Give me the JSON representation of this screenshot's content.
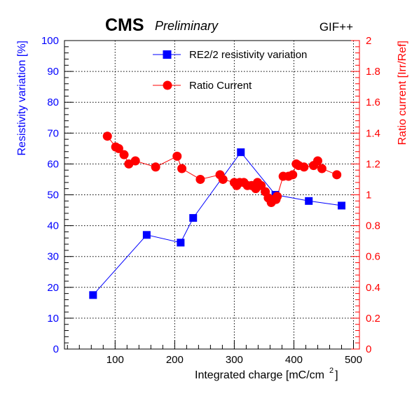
{
  "chart_data": {
    "type": "line",
    "header": {
      "experiment": "CMS",
      "status": "Preliminary",
      "facility": "GIF++"
    },
    "xlabel": "Integrated charge [mC/cm",
    "xlabel_superscript": "2",
    "xlabel_close": "]",
    "ylabel_left": "Resistivity variation [%]",
    "ylabel_right": "Ratio current [Irr/Ref]",
    "xlim": [
      15,
      510
    ],
    "ylim_left": [
      0,
      100
    ],
    "ylim_right": [
      0,
      2
    ],
    "x_ticks": [
      100,
      200,
      300,
      400,
      500
    ],
    "y_left_ticks": [
      0,
      10,
      20,
      30,
      40,
      50,
      60,
      70,
      80,
      90,
      100
    ],
    "y_right_ticks": [
      "0",
      "0.2",
      "0.4",
      "0.6",
      "0.8",
      "1",
      "1.2",
      "1.4",
      "1.6",
      "1.8",
      "2"
    ],
    "grid": true,
    "legend_position": "top-center",
    "colors": {
      "resistivity": "#0000ff",
      "current": "#ff0000",
      "left_axis": "#0000ff",
      "right_axis": "#ff0000",
      "grid": "#000000"
    },
    "series": [
      {
        "name": "RE2/2 resistivity variation",
        "axis": "left",
        "marker": "square",
        "x": [
          63,
          153,
          210,
          231,
          311,
          369,
          425,
          480
        ],
        "y": [
          17.5,
          37,
          34.5,
          42.5,
          63.8,
          50,
          48,
          46.5
        ]
      },
      {
        "name": "Ratio Current",
        "axis": "right",
        "marker": "circle",
        "x": [
          87,
          101,
          106,
          115,
          123,
          134,
          168,
          204,
          212,
          243,
          276,
          281,
          300,
          304,
          309,
          316,
          322,
          329,
          336,
          339,
          345,
          352,
          357,
          362,
          366,
          370,
          372,
          382,
          391,
          398,
          404,
          408,
          417,
          433,
          440,
          447,
          472
        ],
        "y": [
          1.38,
          1.31,
          1.3,
          1.26,
          1.2,
          1.22,
          1.18,
          1.25,
          1.17,
          1.1,
          1.13,
          1.1,
          1.08,
          1.06,
          1.08,
          1.08,
          1.06,
          1.06,
          1.04,
          1.08,
          1.06,
          1.02,
          0.98,
          0.95,
          0.97,
          0.97,
          0.99,
          1.12,
          1.12,
          1.13,
          1.2,
          1.19,
          1.18,
          1.19,
          1.22,
          1.17,
          1.13
        ]
      }
    ]
  }
}
